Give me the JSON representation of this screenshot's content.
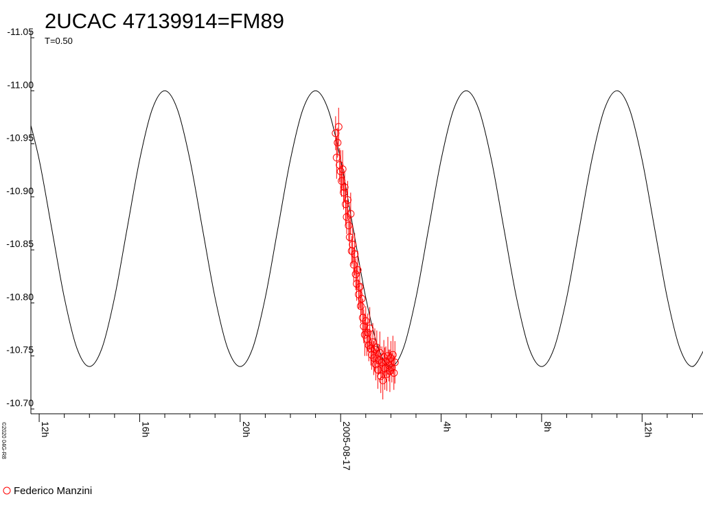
{
  "chart_data": {
    "type": "line",
    "title": "2UCAC 47139914=FM89",
    "subtitle": "T=0.50",
    "copyright": "©2020 04G-R8",
    "xlim": [
      11.67,
      38.37
    ],
    "xticks": [
      {
        "value": 12,
        "label": "12h"
      },
      {
        "value": 16,
        "label": "16h"
      },
      {
        "value": 20,
        "label": "20h"
      },
      {
        "value": 24,
        "label": "2005-08-17"
      },
      {
        "value": 28,
        "label": "4h"
      },
      {
        "value": 32,
        "label": "8h"
      },
      {
        "value": 36,
        "label": "12h"
      }
    ],
    "ylim": [
      -10.7,
      -11.05
    ],
    "yticks": [
      -11.05,
      {
        "value": -11,
        "label": "-11.00"
      },
      -10.95,
      {
        "value": -10.9,
        "label": "-10.90"
      },
      -10.85,
      {
        "value": -10.8,
        "label": "-10.80"
      },
      -10.75,
      {
        "value": -10.7,
        "label": "-10.70"
      }
    ],
    "legend": "bottom-left",
    "series": [
      {
        "type": "line",
        "color": "#000000",
        "x": [
          11.5,
          12,
          12.5,
          13,
          13.5,
          14,
          14.5,
          15,
          15.5,
          16,
          16.5,
          17,
          17.5,
          18,
          18.5,
          19,
          19.5,
          20,
          20.5,
          21,
          21.5,
          22,
          22.5,
          23,
          23.5,
          24,
          24.5,
          25,
          25.5,
          26,
          26.5,
          27,
          27.5,
          28,
          28.5,
          29,
          29.5,
          30,
          30.5,
          31,
          31.5,
          32,
          32.5,
          33,
          33.5,
          34,
          34.5,
          35,
          35.5,
          36,
          36.5,
          37,
          37.5,
          38,
          38.5
        ],
        "values": [
          -10.9826,
          -10.935,
          -10.87,
          -10.805,
          -10.7574,
          -10.74,
          -10.7574,
          -10.805,
          -10.87,
          -10.935,
          -10.9826,
          -11,
          -10.9826,
          -10.935,
          -10.87,
          -10.805,
          -10.7574,
          -10.74,
          -10.7574,
          -10.805,
          -10.87,
          -10.935,
          -10.9826,
          -11,
          -10.9826,
          -10.935,
          -10.87,
          -10.805,
          -10.7574,
          -10.74,
          -10.7574,
          -10.805,
          -10.87,
          -10.935,
          -10.9826,
          -11,
          -10.9826,
          -10.935,
          -10.87,
          -10.805,
          -10.7574,
          -10.74,
          -10.7574,
          -10.805,
          -10.87,
          -10.935,
          -10.9826,
          -11,
          -10.9826,
          -10.935,
          -10.87,
          -10.805,
          -10.7574,
          -10.74,
          -10.7574
        ]
      },
      {
        "type": "scatter",
        "name": "Federico Manzini",
        "color": "#ff0000",
        "x": [
          23.8,
          23.84,
          23.88,
          23.92,
          23.96,
          24,
          24.04,
          24.08,
          24.12,
          24.16,
          24.2,
          24.24,
          24.28,
          24.32,
          24.36,
          24.4,
          24.44,
          24.48,
          24.52,
          24.56,
          24.6,
          24.64,
          24.68,
          24.72,
          24.76,
          24.8,
          24.84,
          24.88,
          24.92,
          24.96,
          25,
          25.04,
          25.08,
          25.12,
          25.16,
          25.2,
          25.24,
          25.28,
          25.32,
          25.36,
          25.4,
          25.44,
          25.48,
          25.52,
          25.56,
          25.6,
          25.64,
          25.68,
          25.72,
          25.76,
          25.8,
          25.84,
          25.88,
          25.92,
          25.96,
          26,
          26.04,
          26.08,
          26.12,
          26.16
        ],
        "values": [
          -10.96,
          -10.937,
          -10.951,
          -10.966,
          -10.93,
          -10.924,
          -10.915,
          -10.926,
          -10.904,
          -10.909,
          -10.893,
          -10.881,
          -10.897,
          -10.873,
          -10.862,
          -10.884,
          -10.849,
          -10.855,
          -10.836,
          -10.846,
          -10.827,
          -10.818,
          -10.831,
          -10.808,
          -10.815,
          -10.797,
          -10.804,
          -10.786,
          -10.778,
          -10.77,
          -10.783,
          -10.766,
          -10.772,
          -10.76,
          -10.776,
          -10.757,
          -10.751,
          -10.763,
          -10.748,
          -10.756,
          -10.742,
          -10.758,
          -10.737,
          -10.746,
          -10.753,
          -10.731,
          -10.744,
          -10.727,
          -10.749,
          -10.738,
          -10.745,
          -10.733,
          -10.75,
          -10.741,
          -10.736,
          -10.748,
          -10.739,
          -10.751,
          -10.734,
          -10.744
        ],
        "errors": [
          0.016,
          0.02,
          0.014,
          0.018,
          0.016,
          0.02,
          0.015,
          0.018,
          0.016,
          0.014,
          0.02,
          0.016,
          0.018,
          0.015,
          0.016,
          0.02,
          0.014,
          0.018,
          0.016,
          0.02,
          0.015,
          0.016,
          0.018,
          0.014,
          0.02,
          0.016,
          0.015,
          0.018,
          0.016,
          0.02,
          0.014,
          0.016,
          0.018,
          0.015,
          0.02,
          0.016,
          0.014,
          0.018,
          0.016,
          0.02,
          0.015,
          0.016,
          0.018,
          0.014,
          0.02,
          0.016,
          0.015,
          0.018,
          0.016,
          0.02,
          0.014,
          0.016,
          0.018,
          0.015,
          0.02,
          0.016,
          0.014,
          0.018,
          0.016,
          0.02
        ]
      }
    ]
  }
}
